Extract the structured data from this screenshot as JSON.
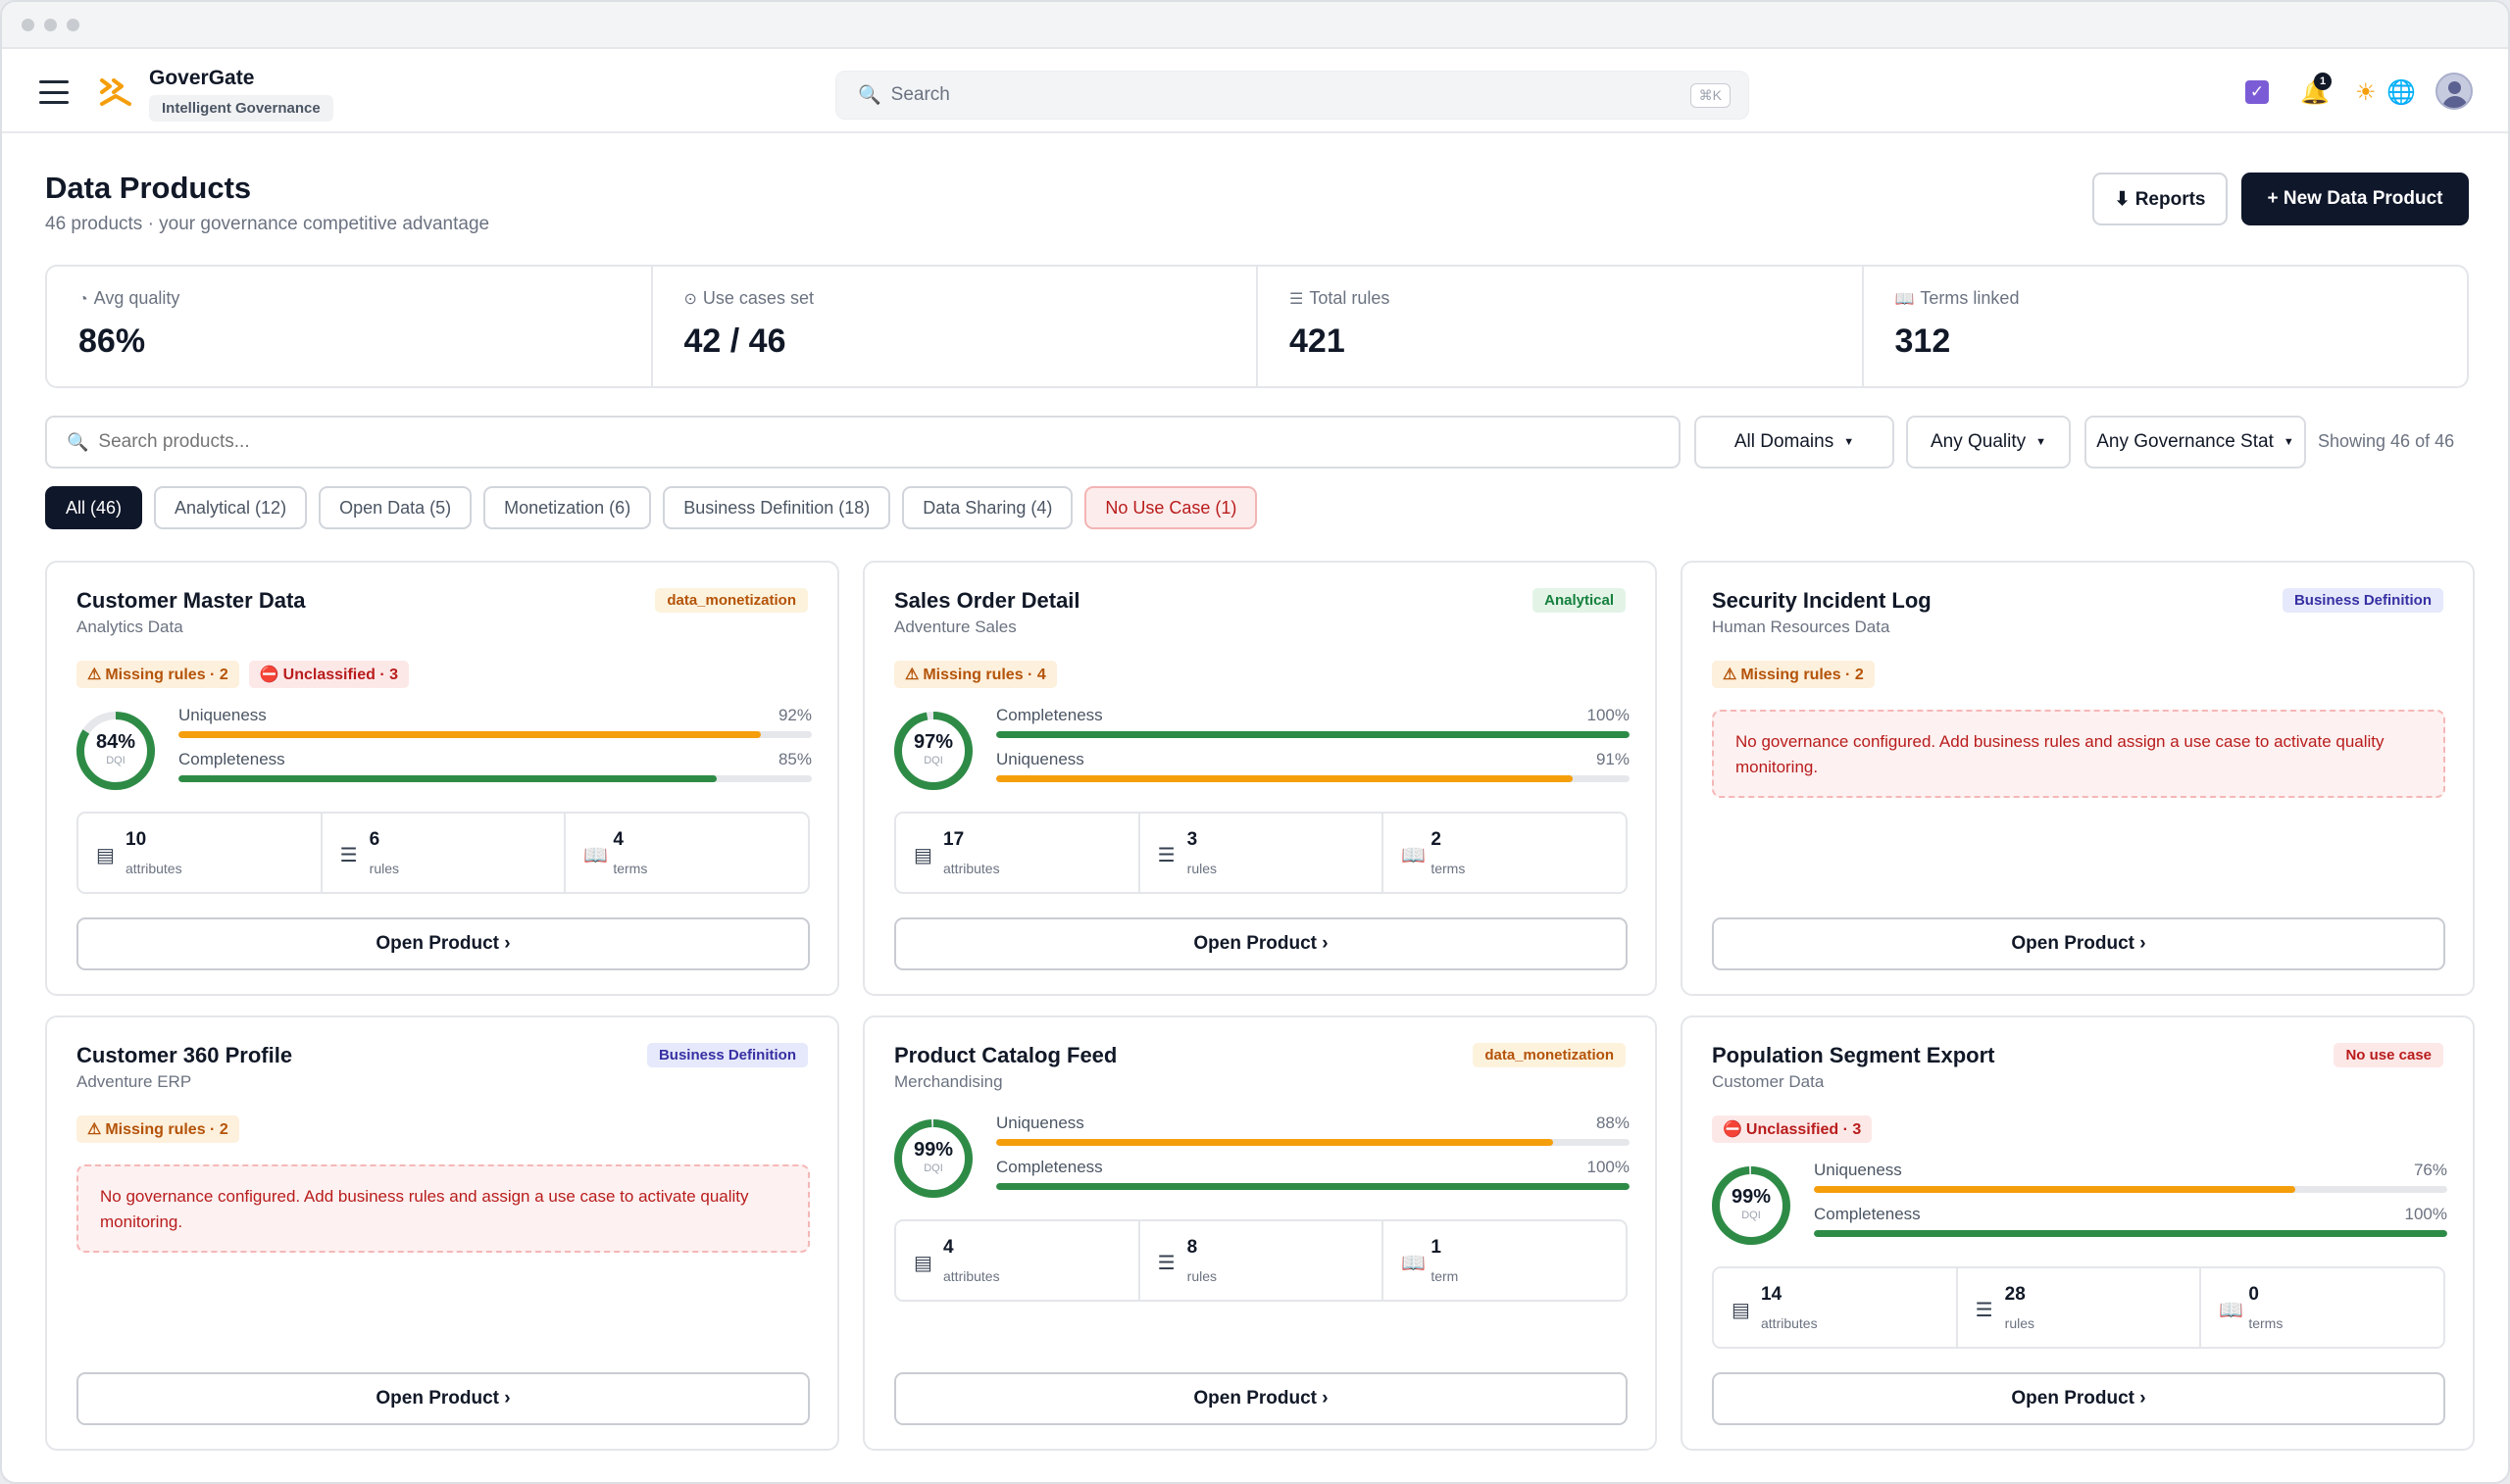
{
  "app": {
    "name": "GoverGate",
    "tagline": "Intelligent Governance"
  },
  "header": {
    "search_placeholder": "Search",
    "shortcut": "⌘K",
    "notifications_count": "1",
    "icons": [
      "menu-icon",
      "logo-icon",
      "search-icon",
      "check-icon",
      "bell-icon",
      "sun-icon",
      "globe-icon",
      "avatar"
    ]
  },
  "page": {
    "title": "Data Products",
    "subtitle": "46 products · your governance competitive advantage",
    "reports_label": "⬇ Reports",
    "new_label": "+ New Data Product"
  },
  "stats": [
    {
      "icon": "◔",
      "label": "Avg quality",
      "value": "86%"
    },
    {
      "icon": "⊙",
      "label": "Use cases set",
      "value": "42 / 46"
    },
    {
      "icon": "☰",
      "label": "Total rules",
      "value": "421"
    },
    {
      "icon": "📖",
      "label": "Terms linked",
      "value": "312"
    }
  ],
  "filters": {
    "search_placeholder": "Search products...",
    "domains": "All Domains",
    "quality": "Any Quality",
    "governance": "Any Governance Stat",
    "showing": "Showing 46 of 46"
  },
  "chips": [
    {
      "label": "All (46)",
      "state": "active"
    },
    {
      "label": "Analytical (12)",
      "state": "normal"
    },
    {
      "label": "Open Data (5)",
      "state": "normal"
    },
    {
      "label": "Monetization (6)",
      "state": "normal"
    },
    {
      "label": "Business Definition (18)",
      "state": "normal"
    },
    {
      "label": "Data Sharing (4)",
      "state": "normal"
    },
    {
      "label": "No Use Case (1)",
      "state": "warn"
    }
  ],
  "colors": {
    "accent_dark": "#0f172a",
    "quality_green": "#2e8b46",
    "quality_orange": "#f59e0b",
    "warn_red": "#b91c1c"
  },
  "cards": [
    {
      "title": "Customer Master Data",
      "subtitle": "Analytics Data",
      "tag": "data_monetization",
      "badges": [
        {
          "icon": "⚠",
          "label": "Missing rules · 2"
        },
        {
          "icon": "⛔",
          "label": "Unclassified · 3"
        }
      ],
      "dqi": "84%",
      "dqi_value": 84,
      "dqi_label": "DQI",
      "metrics": [
        {
          "name": "Uniqueness",
          "pct": "92%",
          "value": 92
        },
        {
          "name": "Completeness",
          "pct": "85%",
          "value": 85
        }
      ],
      "counts": [
        {
          "value": "10",
          "label": "attributes"
        },
        {
          "value": "6",
          "label": "rules"
        },
        {
          "value": "4",
          "label": "terms"
        }
      ],
      "open_label": "Open Product ›"
    },
    {
      "title": "Sales Order Detail",
      "subtitle": "Adventure Sales",
      "tag": "Analytical",
      "badges": [
        {
          "icon": "⚠",
          "label": "Missing rules · 4"
        }
      ],
      "dqi": "97%",
      "dqi_value": 97,
      "dqi_label": "DQI",
      "metrics": [
        {
          "name": "Completeness",
          "pct": "100%",
          "value": 100
        },
        {
          "name": "Uniqueness",
          "pct": "91%",
          "value": 91
        }
      ],
      "counts": [
        {
          "value": "17",
          "label": "attributes"
        },
        {
          "value": "3",
          "label": "rules"
        },
        {
          "value": "2",
          "label": "terms"
        }
      ],
      "open_label": "Open Product ›"
    },
    {
      "title": "Security Incident Log",
      "subtitle": "Human Resources Data",
      "tag": "Business Definition",
      "badges": [
        {
          "icon": "⚠",
          "label": "Missing rules · 2"
        }
      ],
      "notice": "No governance configured. Add business rules and assign a use case to activate quality monitoring.",
      "open_label": "Open Product ›"
    },
    {
      "title": "Customer 360 Profile",
      "subtitle": "Adventure ERP",
      "tag": "Business Definition",
      "badges": [
        {
          "icon": "⚠",
          "label": "Missing rules · 2"
        }
      ],
      "notice": "No governance configured. Add business rules and assign a use case to activate quality monitoring.",
      "open_label": "Open Product ›"
    },
    {
      "title": "Product Catalog Feed",
      "subtitle": "Merchandising",
      "tag": "data_monetization",
      "dqi": "99%",
      "dqi_value": 99,
      "dqi_label": "DQI",
      "metrics": [
        {
          "name": "Uniqueness",
          "pct": "88%",
          "value": 88
        },
        {
          "name": "Completeness",
          "pct": "100%",
          "value": 100
        }
      ],
      "counts": [
        {
          "value": "4",
          "label": "attributes"
        },
        {
          "value": "8",
          "label": "rules"
        },
        {
          "value": "1",
          "label": "term"
        }
      ],
      "open_label": "Open Product ›"
    },
    {
      "title": "Population Segment Export",
      "subtitle": "Customer Data",
      "tag": "No use case",
      "badges": [
        {
          "icon": "⛔",
          "label": "Unclassified · 3"
        }
      ],
      "dqi": "99%",
      "dqi_value": 99,
      "dqi_label": "DQI",
      "metrics": [
        {
          "name": "Uniqueness",
          "pct": "76%",
          "value": 76
        },
        {
          "name": "Completeness",
          "pct": "100%",
          "value": 100
        }
      ],
      "counts": [
        {
          "value": "14",
          "label": "attributes"
        },
        {
          "value": "28",
          "label": "rules"
        },
        {
          "value": "0",
          "label": "terms"
        }
      ],
      "open_label": "Open Product ›"
    }
  ]
}
